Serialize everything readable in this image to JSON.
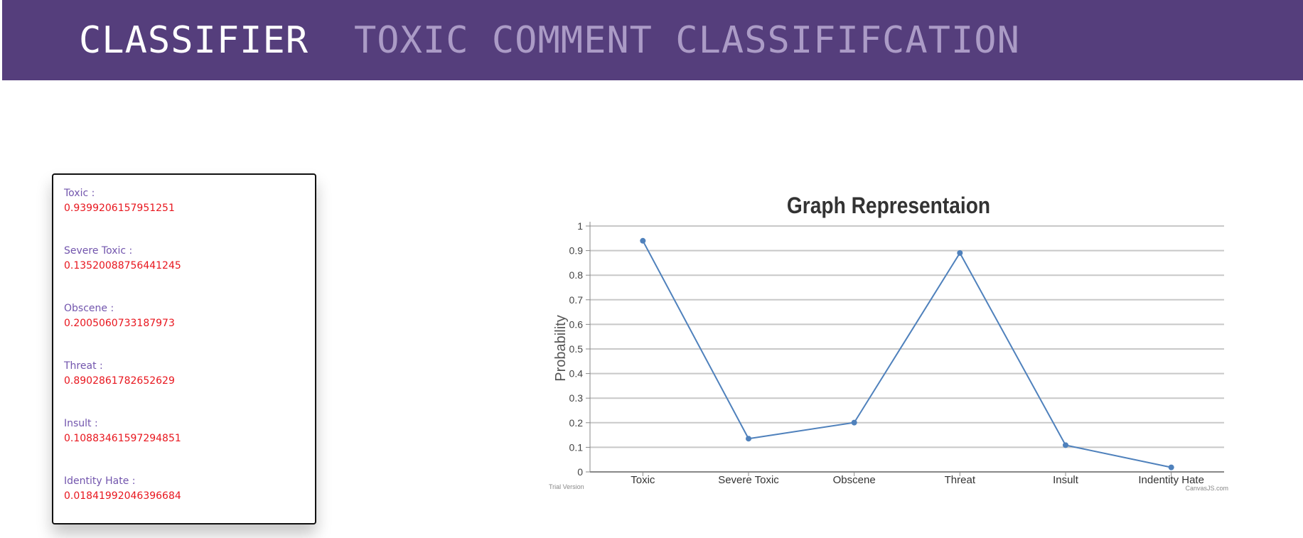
{
  "navbar": {
    "brand": "CLASSIFIER",
    "link": "TOXIC COMMENT CLASSIFIFCATION"
  },
  "results": [
    {
      "label": "Toxic :",
      "value": "0.9399206157951251"
    },
    {
      "label": "Severe Toxic :",
      "value": "0.13520088756441245"
    },
    {
      "label": "Obscene :",
      "value": "0.2005060733187973"
    },
    {
      "label": "Threat :",
      "value": "0.8902861782652629"
    },
    {
      "label": "Insult :",
      "value": "0.10883461597294851"
    },
    {
      "label": "Identity Hate :",
      "value": "0.01841992046396684"
    }
  ],
  "chart_data": {
    "type": "line",
    "title": "Graph Representaion",
    "xlabel": "",
    "ylabel": "Probability",
    "categories": [
      "Toxic",
      "Severe Toxic",
      "Obscene",
      "Threat",
      "Insult",
      "Indentity Hate"
    ],
    "series": [
      {
        "values": [
          0.9399,
          0.1352,
          0.2005,
          0.8903,
          0.1088,
          0.0184
        ]
      }
    ],
    "ylim": [
      0,
      1
    ],
    "yticks": [
      "0",
      "0.1",
      "0.2",
      "0.3",
      "0.4",
      "0.5",
      "0.6",
      "0.7",
      "0.8",
      "0.9",
      "1"
    ],
    "grid": true,
    "line_color": "#4f81bc",
    "watermark_left": "Trial Version",
    "watermark_right": "CanvasJS.com"
  },
  "colors": {
    "navbar": "#553e7c",
    "label": "#7255ad",
    "value": "#e8161e"
  }
}
